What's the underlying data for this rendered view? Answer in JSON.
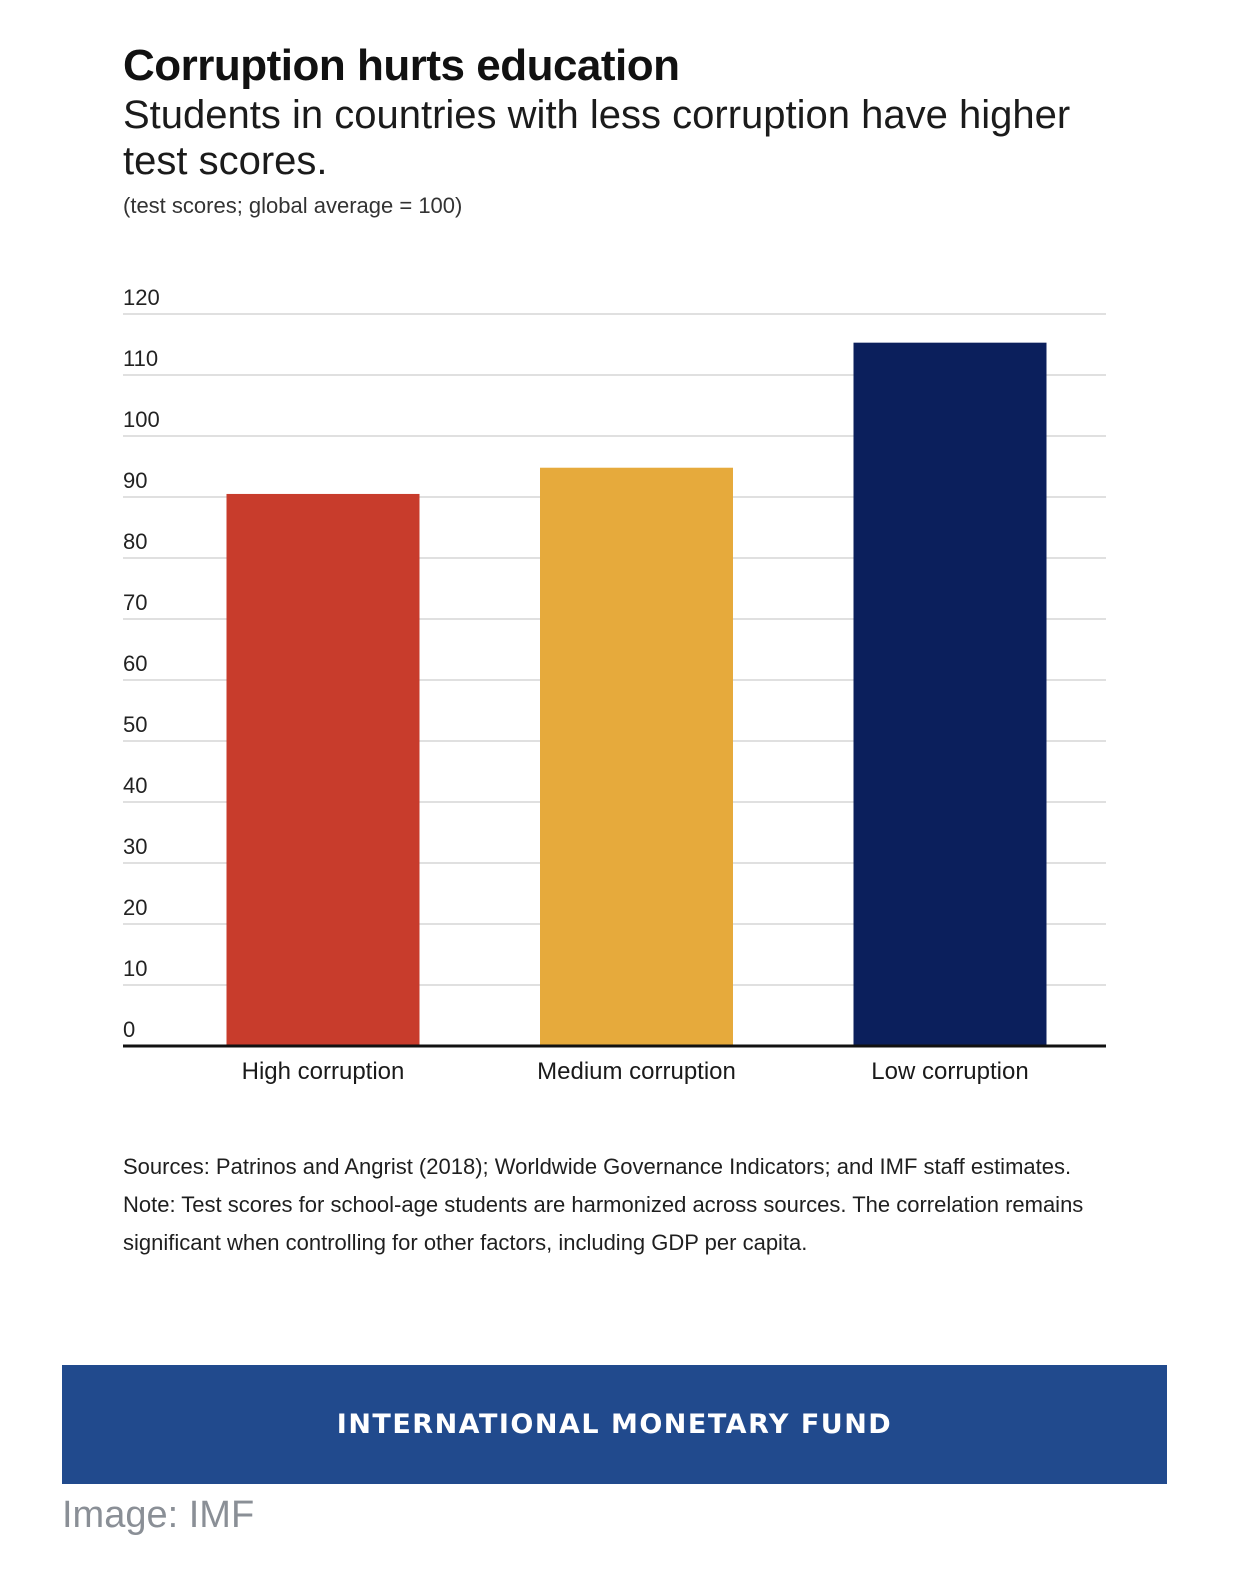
{
  "header": {
    "title": "Corruption hurts education",
    "subtitle": "Students in countries with less corruption have higher test scores.",
    "units": "(test scores; global average = 100)"
  },
  "chart_data": {
    "type": "bar",
    "categories": [
      "High corruption",
      "Medium corruption",
      "Low corruption"
    ],
    "values": [
      90.5,
      94.8,
      115.3
    ],
    "colors": [
      "#c83c2c",
      "#e6aa3c",
      "#0b1f5c"
    ],
    "ylim": [
      0,
      120
    ],
    "yticks": [
      "0",
      "10",
      "20",
      "30",
      "40",
      "50",
      "60",
      "70",
      "80",
      "90",
      "100",
      "110",
      "120"
    ],
    "grid": true,
    "legend": "none"
  },
  "notes": {
    "sources": "Sources: Patrinos and Angrist (2018); Worldwide Governance Indicators; and IMF staff estimates.",
    "note": "Note: Test scores for school-age students are harmonized across sources. The correlation remains significant when controlling for other factors, including GDP per capita."
  },
  "footer": {
    "brand": "INTERNATIONAL MONETARY FUND",
    "brand_color": "#214a8d",
    "credit": "Image: IMF"
  }
}
